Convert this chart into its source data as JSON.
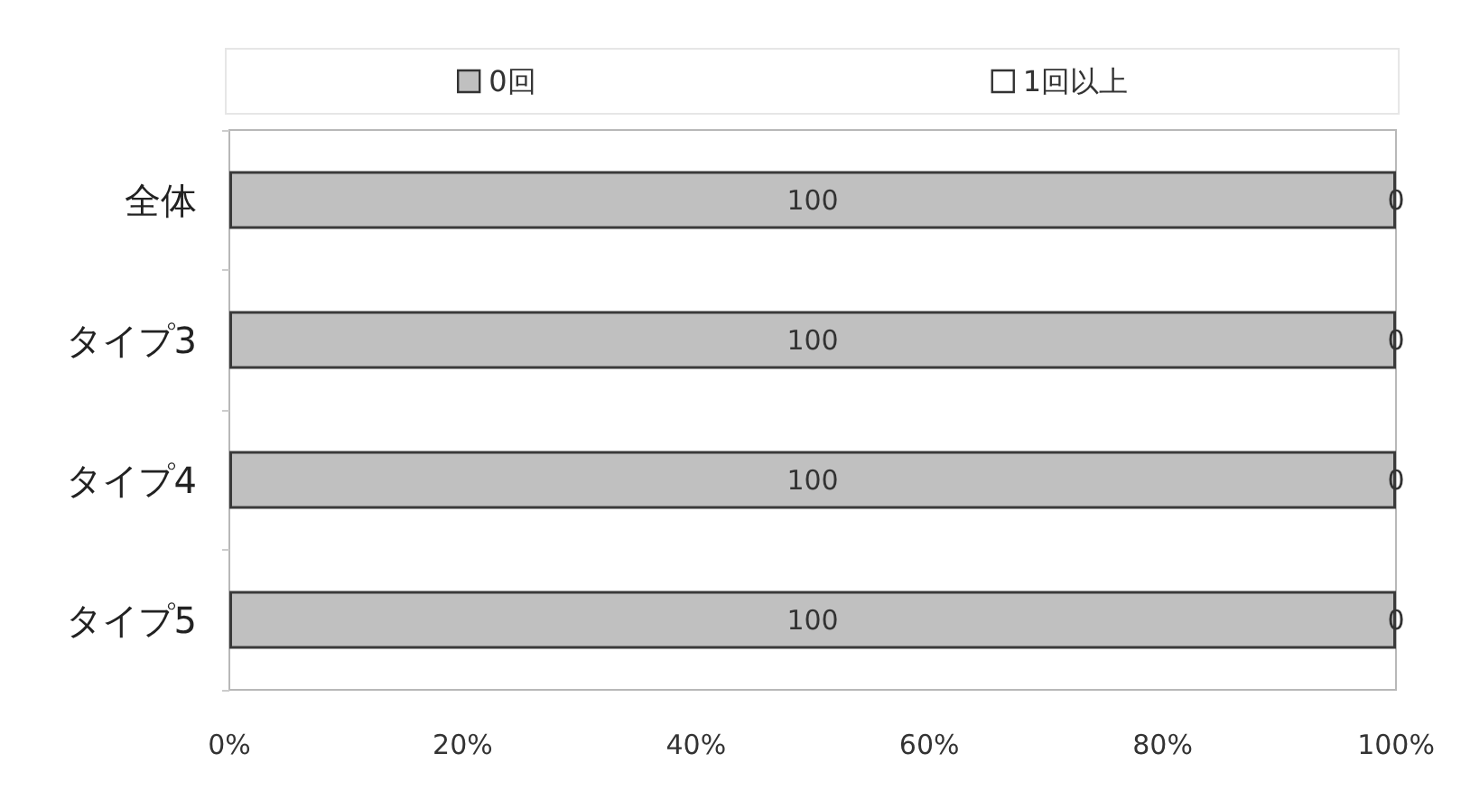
{
  "chart_data": {
    "type": "bar",
    "orientation": "horizontal",
    "stacked": true,
    "categories": [
      "全体",
      "タイプ3",
      "タイプ4",
      "タイプ5"
    ],
    "series": [
      {
        "name": "0回",
        "color": "#c0c0c0",
        "values": [
          100,
          100,
          100,
          100
        ]
      },
      {
        "name": "1回以上",
        "color": "#ffffff",
        "values": [
          0,
          0,
          0,
          0
        ]
      }
    ],
    "xlim": [
      0,
      100
    ],
    "xticks": [
      {
        "value": 0,
        "label": "0%"
      },
      {
        "value": 20,
        "label": "20%"
      },
      {
        "value": 40,
        "label": "40%"
      },
      {
        "value": 60,
        "label": "60%"
      },
      {
        "value": 80,
        "label": "80%"
      },
      {
        "value": 100,
        "label": "100%"
      }
    ],
    "data_labels": true,
    "legend": "top",
    "grid": false
  }
}
